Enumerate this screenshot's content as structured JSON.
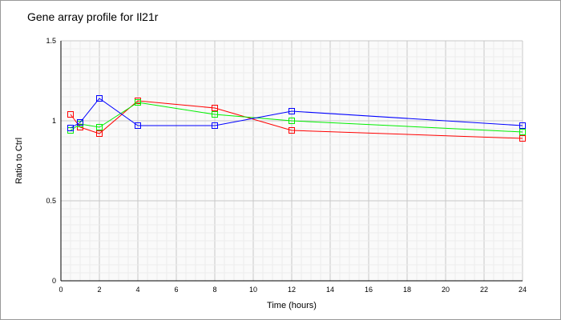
{
  "chart_data": {
    "type": "line",
    "title": "Gene array profile for Il21r",
    "xlabel": "Time (hours)",
    "ylabel": "Ratio to Ctrl",
    "xlim": [
      0,
      24
    ],
    "ylim": [
      0,
      1.5
    ],
    "xticks": [
      0,
      2,
      4,
      6,
      8,
      10,
      12,
      14,
      16,
      18,
      20,
      22,
      24
    ],
    "yticks": [
      0,
      0.5,
      1,
      1.5
    ],
    "ytick_labels": [
      "0",
      "0.5",
      "1",
      "1.5"
    ],
    "grid": true,
    "x": [
      0.5,
      1,
      2,
      4,
      8,
      12,
      24
    ],
    "series": [
      {
        "name": "red",
        "color": "#ff0000",
        "values": [
          1.04,
          0.96,
          0.92,
          1.125,
          1.08,
          0.94,
          0.89
        ]
      },
      {
        "name": "green",
        "color": "#00ee00",
        "values": [
          0.94,
          0.98,
          0.96,
          1.115,
          1.04,
          1.0,
          0.93
        ]
      },
      {
        "name": "blue",
        "color": "#0000ff",
        "values": [
          0.955,
          0.99,
          1.14,
          0.97,
          0.97,
          1.06,
          0.97
        ]
      }
    ]
  }
}
